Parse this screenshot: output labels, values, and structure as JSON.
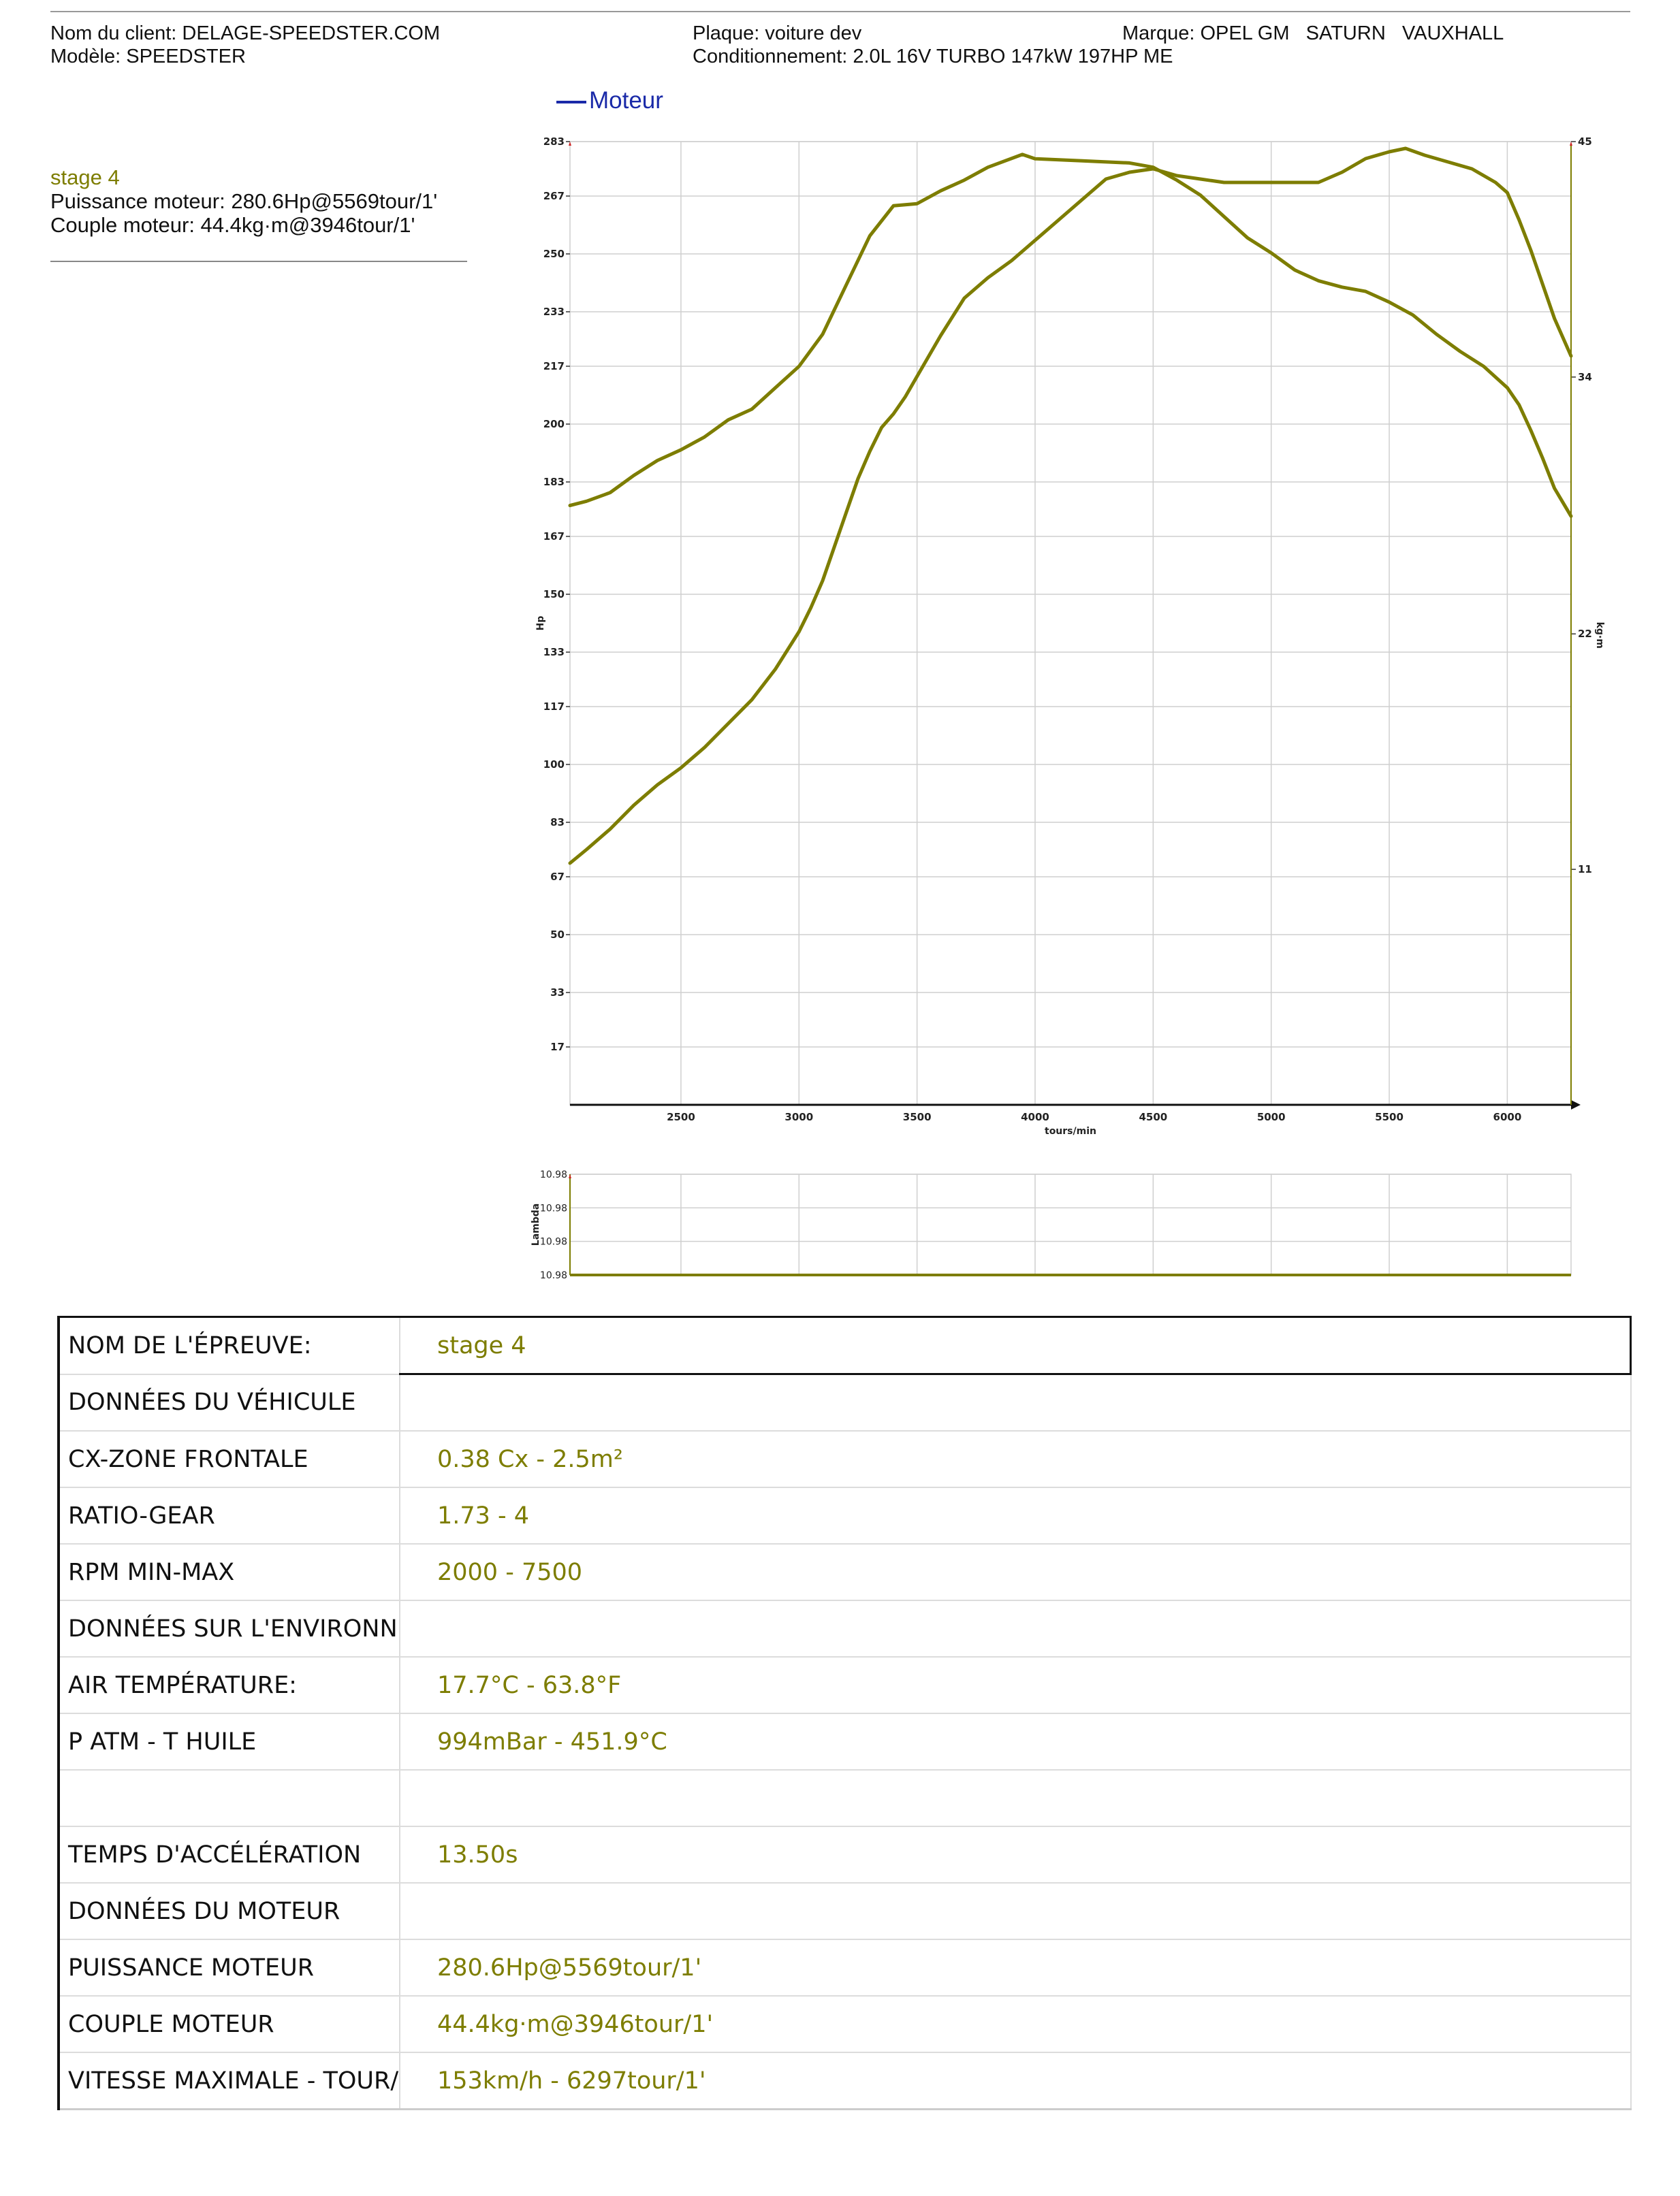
{
  "header": {
    "client": "Nom du client: DELAGE-SPEEDSTER.COM",
    "model": "Modèle: SPEEDSTER",
    "plate": "Plaque: voiture dev",
    "conditioning": "Conditionnement: 2.0L 16V TURBO 147kW 197HP ME",
    "brand": "Marque: OPEL GM   SATURN   VAUXHALL"
  },
  "legend": {
    "label": "Moteur",
    "color": "#1a2aa8"
  },
  "summary": {
    "run_name": "stage 4",
    "power": "Puissance moteur: 280.6Hp@5569tour/1'",
    "torque": "Couple moteur: 44.4kg·m@3946tour/1'"
  },
  "chart_data": [
    {
      "type": "line",
      "title": "",
      "xlabel": "tours/min",
      "ylabel": "Hp",
      "y2label": "kg·m",
      "xlim": [
        2030,
        6270
      ],
      "ylim": [
        0,
        283
      ],
      "y2lim": [
        0,
        45
      ],
      "x_ticks": [
        "2500",
        "3000",
        "3500",
        "4000",
        "4500",
        "5000",
        "5500",
        "6000"
      ],
      "y_ticks": [
        "283",
        "267",
        "250",
        "233",
        "217",
        "200",
        "183",
        "167",
        "150",
        "133",
        "117",
        "100",
        "83",
        "67",
        "50",
        "33",
        "17"
      ],
      "y2_ticks": [
        "45",
        "34",
        "22",
        "11"
      ],
      "grid": true,
      "line_color": "#7d7d00",
      "series": [
        {
          "axis": "left",
          "x": [
            2030,
            2100,
            2200,
            2300,
            2400,
            2500,
            2600,
            2700,
            2800,
            2900,
            3000,
            3050,
            3100,
            3150,
            3200,
            3250,
            3300,
            3350,
            3400,
            3450,
            3500,
            3600,
            3700,
            3800,
            3900,
            4000,
            4100,
            4200,
            4300,
            4400,
            4500,
            4600,
            4700,
            4800,
            4900,
            5000,
            5100,
            5200,
            5300,
            5400,
            5500,
            5569,
            5650,
            5750,
            5850,
            5950,
            6000,
            6050,
            6100,
            6150,
            6200,
            6270
          ],
          "y": [
            71,
            75,
            81,
            88,
            94,
            99,
            105,
            112,
            119,
            128,
            139,
            146,
            154,
            164,
            174,
            184,
            192,
            199,
            203,
            208,
            214,
            226,
            237,
            243,
            248,
            254,
            260,
            266,
            272,
            274,
            275,
            273,
            272,
            271,
            271,
            271,
            271,
            271,
            274,
            278,
            280,
            281,
            279,
            277,
            275,
            271,
            268,
            260,
            251,
            241,
            231,
            220
          ]
        },
        {
          "axis": "right",
          "x": [
            2030,
            2100,
            2200,
            2300,
            2400,
            2500,
            2600,
            2700,
            2800,
            2900,
            3000,
            3100,
            3200,
            3300,
            3400,
            3500,
            3600,
            3700,
            3800,
            3946,
            4000,
            4200,
            4400,
            4500,
            4600,
            4700,
            4800,
            4900,
            5000,
            5100,
            5200,
            5300,
            5400,
            5500,
            5600,
            5700,
            5800,
            5900,
            6000,
            6050,
            6100,
            6150,
            6200,
            6270
          ],
          "y": [
            28.0,
            28.2,
            28.6,
            29.4,
            30.1,
            30.6,
            31.2,
            32.0,
            32.5,
            33.5,
            34.5,
            36.0,
            38.3,
            40.6,
            42.0,
            42.1,
            42.7,
            43.2,
            43.8,
            44.4,
            44.2,
            44.1,
            44.0,
            43.8,
            43.2,
            42.5,
            41.5,
            40.5,
            39.8,
            39.0,
            38.5,
            38.2,
            38.0,
            37.5,
            36.9,
            36.0,
            35.2,
            34.5,
            33.5,
            32.7,
            31.5,
            30.2,
            28.8,
            27.5
          ]
        }
      ]
    },
    {
      "type": "line",
      "title": "",
      "ylabel": "Lambda",
      "y_ticks": [
        "10.98",
        "10.98",
        "10.98",
        "10.98"
      ],
      "xlim": [
        2030,
        6270
      ],
      "series": [
        {
          "x": [
            2030,
            6270
          ],
          "y": [
            10.98,
            10.98
          ]
        }
      ]
    }
  ],
  "table": {
    "rows": [
      {
        "key": "NOM DE L'ÉPREUVE:",
        "value": "stage 4"
      },
      {
        "key": "DONNÉES DU VÉHICULE",
        "value": ""
      },
      {
        "key": "CX-ZONE FRONTALE",
        "value": "0.38 Cx - 2.5m²"
      },
      {
        "key": "RATIO-GEAR",
        "value": "1.73 - 4"
      },
      {
        "key": "RPM MIN-MAX",
        "value": "2000 - 7500"
      },
      {
        "key": "DONNÉES SUR L'ENVIRONNEN",
        "value": ""
      },
      {
        "key": "AIR TEMPÉRATURE:",
        "value": "17.7°C - 63.8°F"
      },
      {
        "key": "P ATM - T HUILE",
        "value": "994mBar - 451.9°C"
      },
      {
        "key": "",
        "value": ""
      },
      {
        "key": "TEMPS D'ACCÉLÉRATION",
        "value": "13.50s"
      },
      {
        "key": "DONNÉES DU MOTEUR",
        "value": ""
      },
      {
        "key": "PUISSANCE MOTEUR",
        "value": "280.6Hp@5569tour/1'"
      },
      {
        "key": "COUPLE MOTEUR",
        "value": "44.4kg·m@3946tour/1'"
      },
      {
        "key": "VITESSE MAXIMALE - TOUR/L'",
        "value": "153km/h - 6297tour/1'"
      }
    ]
  }
}
